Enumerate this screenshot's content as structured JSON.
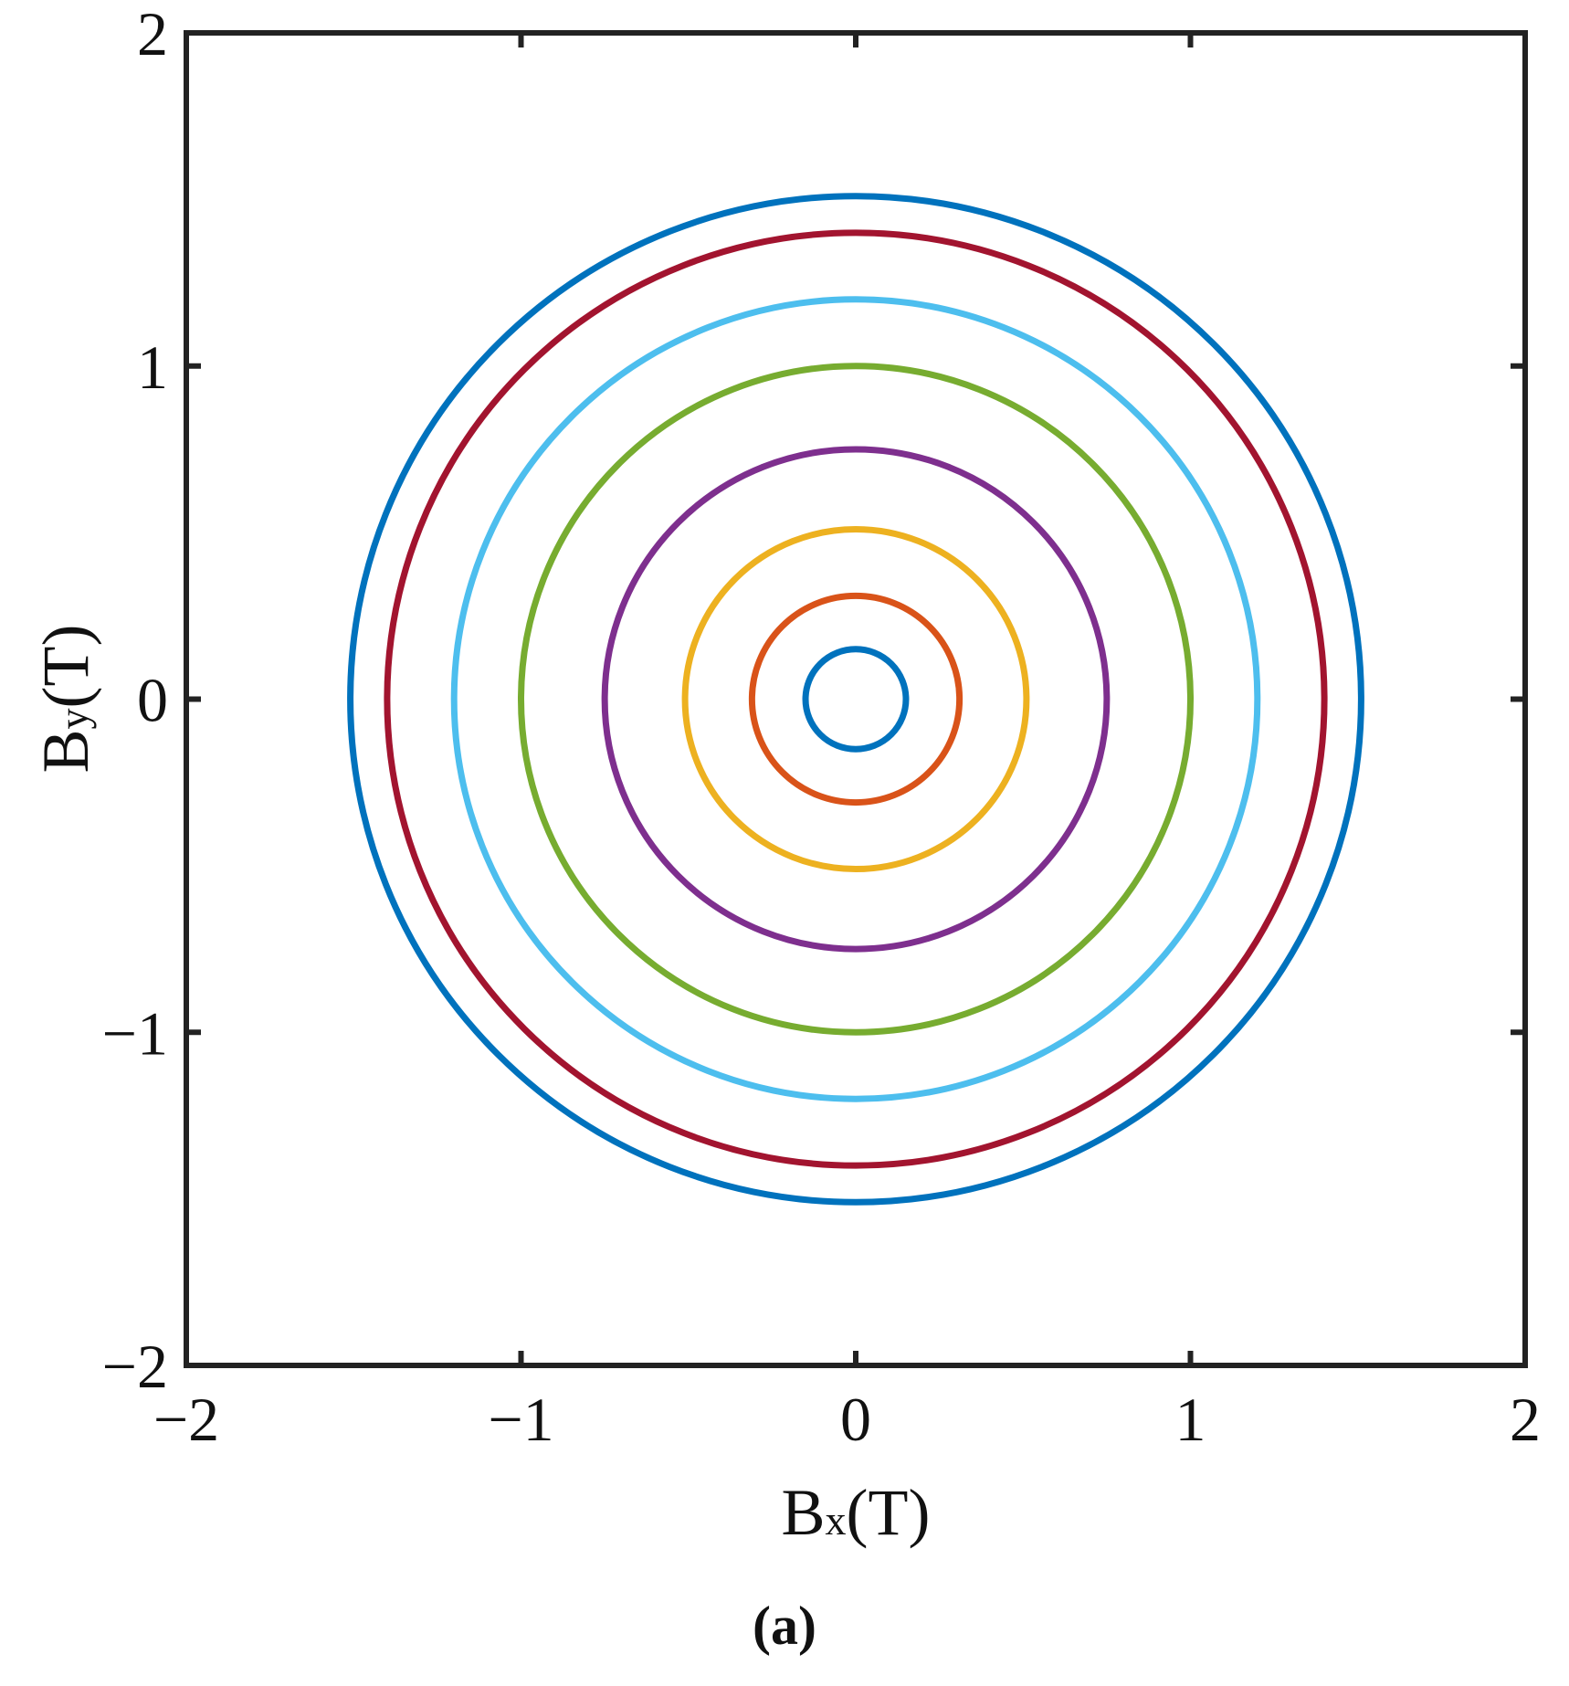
{
  "chart_data": {
    "type": "line",
    "xlabel": {
      "main": "B",
      "sub": "x",
      "unit": "(T)"
    },
    "ylabel": {
      "main": "B",
      "sub": "y",
      "unit": "(T)"
    },
    "xlim": [
      -2,
      2
    ],
    "ylim": [
      -2,
      2
    ],
    "xticks": [
      -2,
      -1,
      0,
      1,
      2
    ],
    "yticks": [
      -2,
      -1,
      0,
      1,
      2
    ],
    "xtick_labels": [
      "−2",
      "−1",
      "0",
      "1",
      "2"
    ],
    "ytick_labels": [
      "−2",
      "−1",
      "0",
      "1",
      "2"
    ],
    "grid": false,
    "legend": "none",
    "series": [
      {
        "radius": 0.15,
        "color": "#0072BD"
      },
      {
        "radius": 0.31,
        "color": "#D95319"
      },
      {
        "radius": 0.51,
        "color": "#EDB120"
      },
      {
        "radius": 0.75,
        "color": "#7E2F8E"
      },
      {
        "radius": 1.0,
        "color": "#77AC30"
      },
      {
        "radius": 1.2,
        "color": "#4DBEEE"
      },
      {
        "radius": 1.4,
        "color": "#A2142F"
      },
      {
        "radius": 1.51,
        "color": "#0072BD"
      }
    ]
  },
  "caption": "(a)"
}
